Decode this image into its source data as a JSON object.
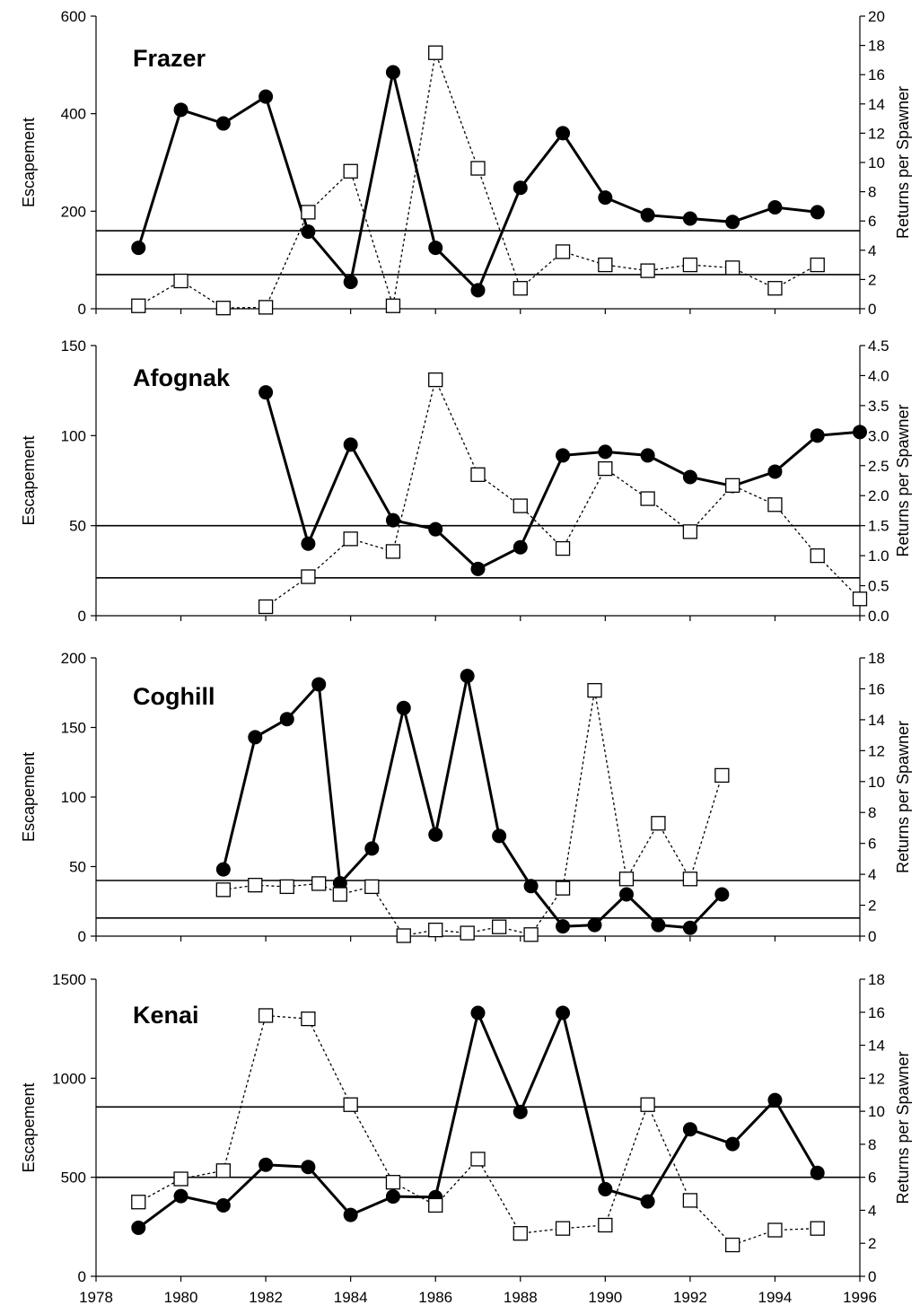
{
  "chart_data": [
    {
      "type": "line",
      "title": "Frazer",
      "ylabel": "Escapement",
      "y2label": "Returns per Spawner",
      "xlim": [
        1978,
        1996
      ],
      "ylim": [
        0,
        600
      ],
      "y2lim": [
        0,
        20
      ],
      "yticks": [
        0,
        200,
        400,
        600
      ],
      "y2ticks": [
        0,
        2,
        4,
        6,
        8,
        10,
        12,
        14,
        16,
        18,
        20
      ],
      "hlines_y": [
        160,
        70
      ],
      "series": [
        {
          "axis": "left",
          "style": "solid-filled-circle",
          "x": [
            1979,
            1980,
            1981,
            1982,
            1983,
            1984,
            1985,
            1986,
            1987,
            1988,
            1989,
            1990,
            1991,
            1992,
            1993,
            1994,
            1995
          ],
          "values": [
            125,
            408,
            380,
            435,
            158,
            55,
            485,
            125,
            38,
            248,
            360,
            228,
            192,
            185,
            178,
            208,
            198
          ]
        },
        {
          "axis": "right",
          "style": "dotted-open-square",
          "x": [
            1979,
            1980,
            1981,
            1982,
            1983,
            1984,
            1985,
            1986,
            1987,
            1988,
            1989,
            1990,
            1991,
            1992,
            1993,
            1994,
            1995
          ],
          "values": [
            0.2,
            1.9,
            0.05,
            0.1,
            6.6,
            9.4,
            0.2,
            17.5,
            9.6,
            1.4,
            3.9,
            3.0,
            2.6,
            3.0,
            2.8,
            1.4,
            3.0
          ]
        }
      ]
    },
    {
      "type": "line",
      "title": "Afognak",
      "ylabel": "Escapement",
      "y2label": "Returns per Spawner",
      "xlim": [
        1978,
        1996
      ],
      "ylim": [
        0,
        150
      ],
      "y2lim": [
        0,
        4.5
      ],
      "yticks": [
        0,
        50,
        100,
        150
      ],
      "y2ticks": [
        0.0,
        0.5,
        1.0,
        1.5,
        2.0,
        2.5,
        3.0,
        3.5,
        4.0,
        4.5
      ],
      "hlines_y": [
        50,
        21
      ],
      "series": [
        {
          "axis": "left",
          "style": "solid-filled-circle",
          "x": [
            1982,
            1983,
            1984,
            1985,
            1986,
            1987,
            1988,
            1989,
            1990,
            1991,
            1992,
            1993,
            1994,
            1995,
            1996
          ],
          "values": [
            124,
            40,
            95,
            53,
            48,
            26,
            38,
            89,
            91,
            89,
            77,
            72,
            80,
            100,
            102
          ]
        },
        {
          "axis": "right",
          "style": "dotted-open-square",
          "x": [
            1982,
            1983,
            1984,
            1985,
            1986,
            1987,
            1988,
            1989,
            1990,
            1991,
            1992,
            1993,
            1994,
            1995,
            1996
          ],
          "values": [
            0.15,
            0.65,
            1.28,
            1.07,
            3.93,
            2.35,
            1.83,
            1.12,
            2.45,
            1.95,
            1.4,
            2.17,
            1.85,
            1.0,
            0.28
          ]
        }
      ]
    },
    {
      "type": "line",
      "title": "Coghill",
      "ylabel": "Escapement",
      "y2label": "Returns per Spawner",
      "xlim": [
        1978,
        1996
      ],
      "ylim": [
        0,
        200
      ],
      "y2lim": [
        0,
        18
      ],
      "yticks": [
        0,
        50,
        100,
        150,
        200
      ],
      "y2ticks": [
        0,
        2,
        4,
        6,
        8,
        10,
        12,
        14,
        16,
        18
      ],
      "hlines_y": [
        40,
        13
      ],
      "series": [
        {
          "axis": "left",
          "style": "solid-filled-circle",
          "x": [
            1981,
            1981.75,
            1982.5,
            1983.25,
            1983.75,
            1984.5,
            1985.25,
            1986,
            1986.75,
            1987.5,
            1988.25,
            1989,
            1989.75,
            1990.5,
            1991.25,
            1992,
            1992.75
          ],
          "values": [
            48,
            143,
            156,
            181,
            38,
            63,
            164,
            73,
            187,
            72,
            36,
            7,
            8,
            30,
            8,
            6,
            30
          ]
        },
        {
          "axis": "right",
          "style": "dotted-open-square",
          "x": [
            1981,
            1981.75,
            1982.5,
            1983.25,
            1983.75,
            1984.5,
            1985.25,
            1986,
            1986.75,
            1987.5,
            1988.25,
            1989,
            1989.75,
            1990.5,
            1991.25,
            1992,
            1992.75
          ],
          "values": [
            3.0,
            3.3,
            3.2,
            3.4,
            2.7,
            3.2,
            0.03,
            0.4,
            0.2,
            0.6,
            0.1,
            3.1,
            15.9,
            3.7,
            7.3,
            3.7,
            10.4
          ]
        }
      ]
    },
    {
      "type": "line",
      "title": "Kenai",
      "ylabel": "Escapement",
      "y2label": "Returns per Spawner",
      "xlim": [
        1978,
        1996
      ],
      "ylim": [
        0,
        1500
      ],
      "y2lim": [
        0,
        18
      ],
      "yticks": [
        0,
        500,
        1000,
        1500
      ],
      "y2ticks": [
        0,
        2,
        4,
        6,
        8,
        10,
        12,
        14,
        16,
        18
      ],
      "xticks": [
        1978,
        1980,
        1982,
        1984,
        1986,
        1988,
        1990,
        1992,
        1994,
        1996
      ],
      "hlines_y": [
        855,
        500
      ],
      "series": [
        {
          "axis": "left",
          "style": "solid-filled-circle",
          "x": [
            1979,
            1980,
            1981,
            1982,
            1983,
            1984,
            1985,
            1986,
            1987,
            1988,
            1989,
            1990,
            1991,
            1992,
            1993,
            1994,
            1995
          ],
          "values": [
            245,
            405,
            358,
            563,
            552,
            310,
            403,
            400,
            1330,
            830,
            1330,
            440,
            378,
            742,
            668,
            890,
            522
          ]
        },
        {
          "axis": "right",
          "style": "dotted-open-square",
          "x": [
            1979,
            1980,
            1981,
            1982,
            1983,
            1984,
            1985,
            1986,
            1987,
            1988,
            1989,
            1990,
            1991,
            1992,
            1993,
            1994,
            1995
          ],
          "values": [
            4.5,
            5.9,
            6.4,
            15.8,
            15.6,
            10.4,
            5.7,
            4.3,
            7.1,
            2.6,
            2.9,
            3.1,
            10.4,
            4.6,
            1.9,
            2.8,
            2.9
          ]
        }
      ]
    }
  ]
}
